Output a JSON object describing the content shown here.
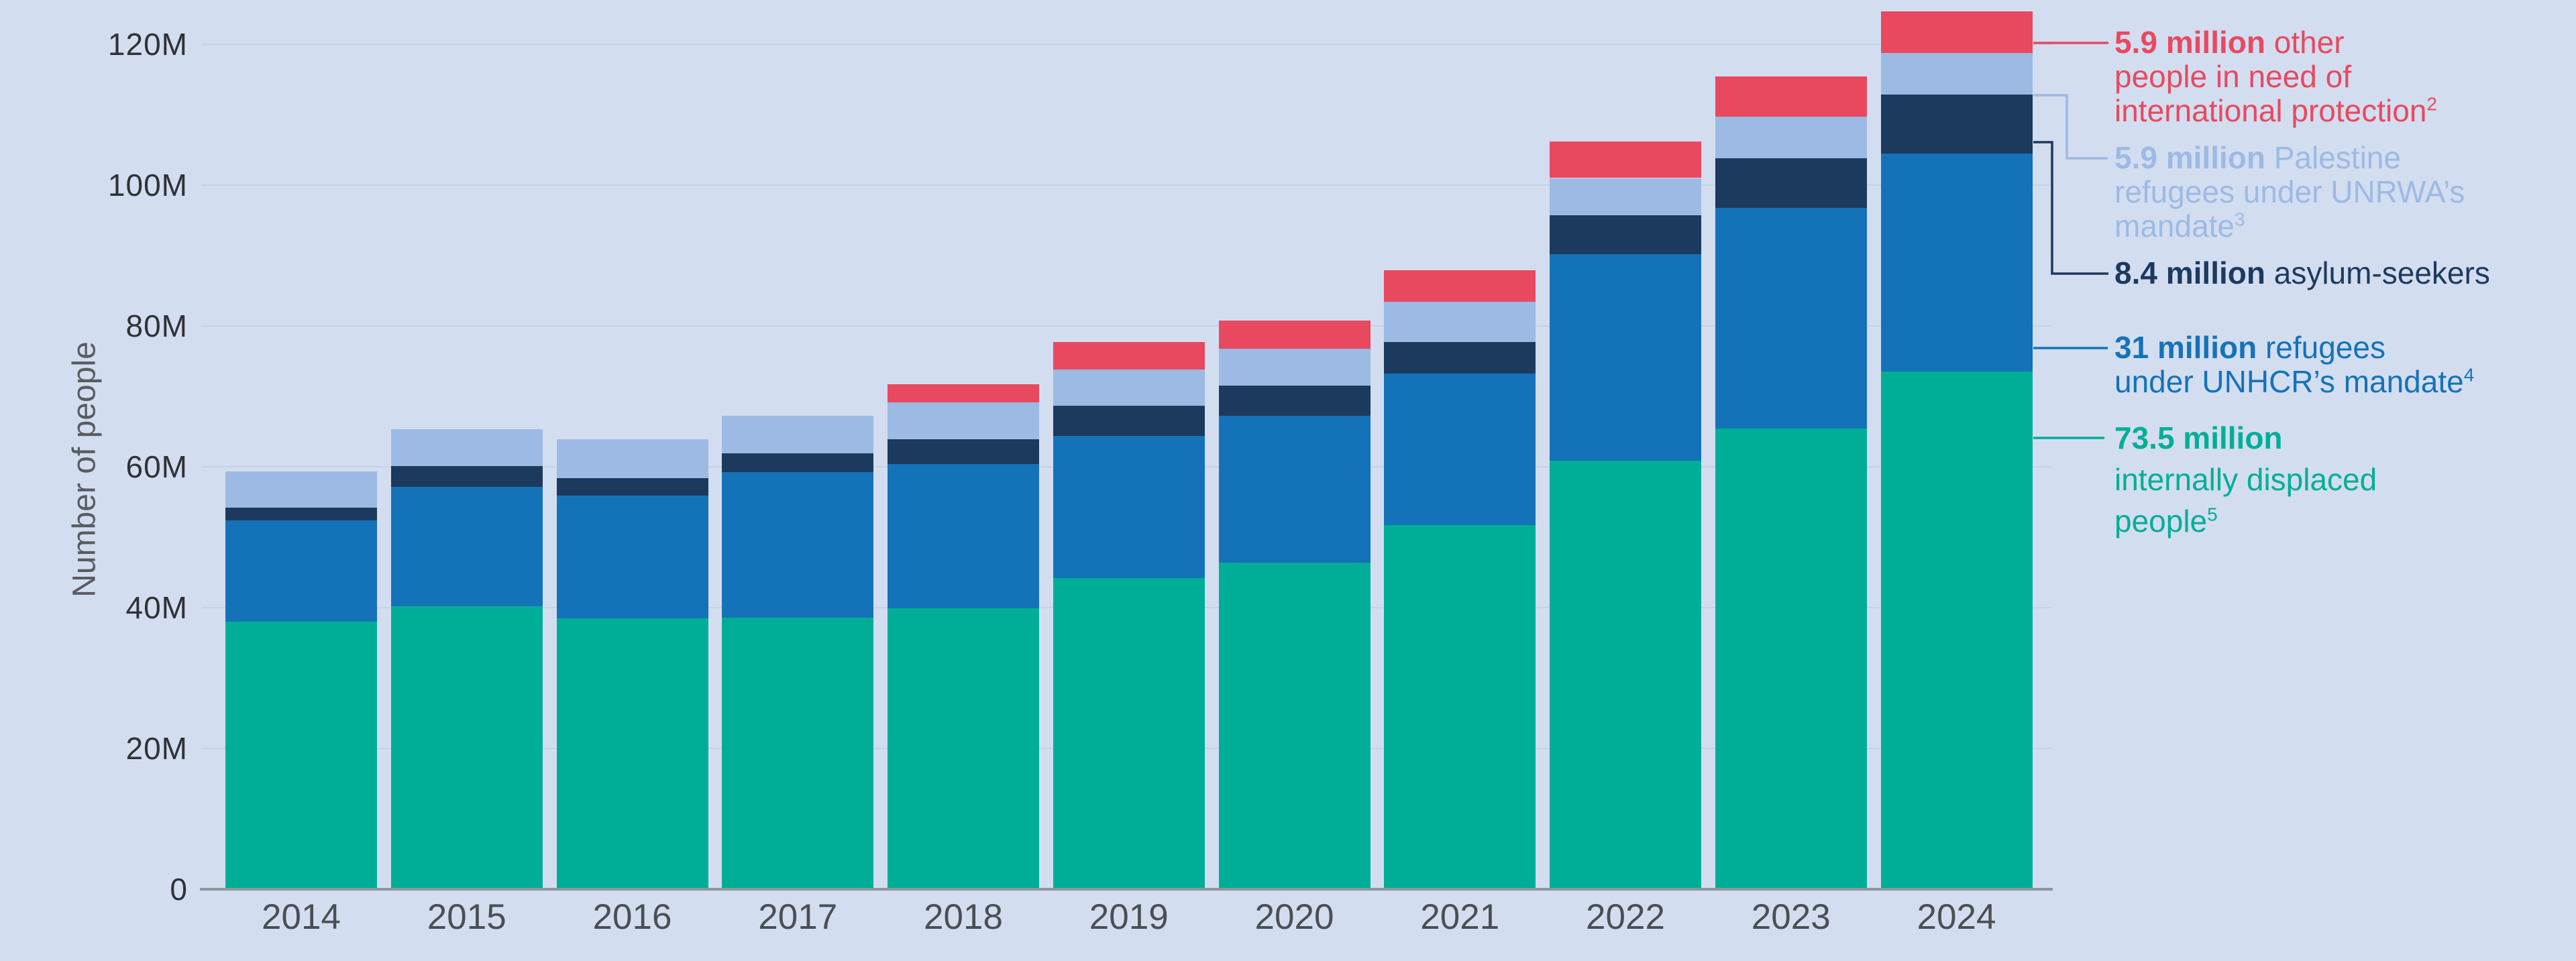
{
  "background": "#D3DDF0",
  "chart_data": {
    "type": "bar",
    "stacked": true,
    "title": "",
    "xlabel": "",
    "ylabel": "Number of people",
    "ylim": [
      0,
      125
    ],
    "grid": "horizontal",
    "legend_position": "right",
    "categories": [
      "2014",
      "2015",
      "2016",
      "2017",
      "2018",
      "2019",
      "2020",
      "2021",
      "2022",
      "2023",
      "2024"
    ],
    "y_ticks": [
      {
        "value": 0,
        "label": "0"
      },
      {
        "value": 20,
        "label": "20M"
      },
      {
        "value": 40,
        "label": "40M"
      },
      {
        "value": 60,
        "label": "60M"
      },
      {
        "value": 80,
        "label": "80M"
      },
      {
        "value": 100,
        "label": "100M"
      },
      {
        "value": 120,
        "label": "120M"
      }
    ],
    "unit": "millions of people",
    "series": [
      {
        "id": "idp",
        "name": "internally displaced people",
        "color": "#00AE97",
        "values": [
          38.0,
          40.2,
          38.5,
          38.6,
          39.9,
          44.2,
          46.4,
          51.7,
          60.9,
          65.4,
          73.5
        ]
      },
      {
        "id": "unhcr",
        "name": "refugees under UNHCR’s mandate",
        "color": "#1473B8",
        "values": [
          14.4,
          16.9,
          17.4,
          20.6,
          20.5,
          20.2,
          20.8,
          21.5,
          29.3,
          31.4,
          31.0
        ]
      },
      {
        "id": "asylum",
        "name": "asylum-seekers",
        "color": "#1C3A5E",
        "values": [
          1.8,
          3.0,
          2.5,
          2.7,
          3.5,
          4.3,
          4.3,
          4.5,
          5.5,
          7.0,
          8.4
        ]
      },
      {
        "id": "unrwa",
        "name": "Palestine refugees under UNRWA’s mandate",
        "color": "#9CBAE3",
        "values": [
          5.1,
          5.2,
          5.5,
          5.3,
          5.2,
          5.1,
          5.3,
          5.7,
          5.3,
          5.9,
          5.9
        ]
      },
      {
        "id": "other",
        "name": "other people in need of international protection",
        "color": "#E8495F",
        "values": [
          0,
          0,
          0,
          0,
          2.6,
          3.9,
          4.0,
          4.5,
          5.2,
          5.7,
          5.9
        ]
      }
    ]
  },
  "legend": {
    "items": [
      {
        "id": "other",
        "bold": "5.9 million",
        "rest_lines": [
          "other",
          "people in need of",
          "international protection"
        ],
        "sup": "2",
        "color": "#E8495F"
      },
      {
        "id": "unrwa",
        "bold": "5.9 million",
        "rest_lines": [
          "Palestine",
          "refugees under UNRWA’s",
          "mandate"
        ],
        "sup": "3",
        "color": "#9CBAE3"
      },
      {
        "id": "asylum",
        "bold": "8.4 million",
        "rest_lines": [
          "asylum-seekers"
        ],
        "sup": "",
        "color": "#1C3A5E"
      },
      {
        "id": "unhcr",
        "bold": "31 million",
        "rest_lines": [
          "refugees",
          "under UNHCR’s mandate"
        ],
        "sup": "4",
        "color": "#1473B8"
      },
      {
        "id": "idp",
        "bold": "73.5 million",
        "rest_lines": [
          "",
          "internally displaced",
          "people"
        ],
        "sup": "5",
        "color": "#00AE97"
      }
    ]
  }
}
